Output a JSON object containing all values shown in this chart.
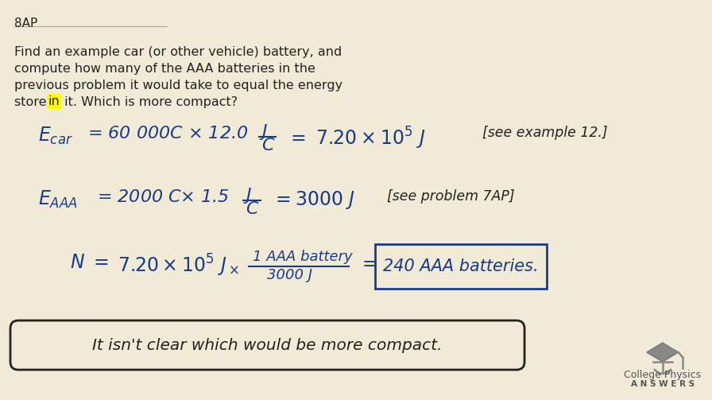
{
  "background_color": "#f0ead6",
  "text_color_black": "#222222",
  "text_color_blue": "#1a3a8c",
  "highlight_color": "#ffff00",
  "label_8ap": "8AP",
  "problem_text": [
    "Find an example car (or other vehicle) battery, and",
    "compute how many of the AAA batteries in the",
    "previous problem it would take to equal the energy",
    "stored in it. Which is more compact?"
  ],
  "logo_text1": "College Physics",
  "logo_text2": "A N S W E R S"
}
